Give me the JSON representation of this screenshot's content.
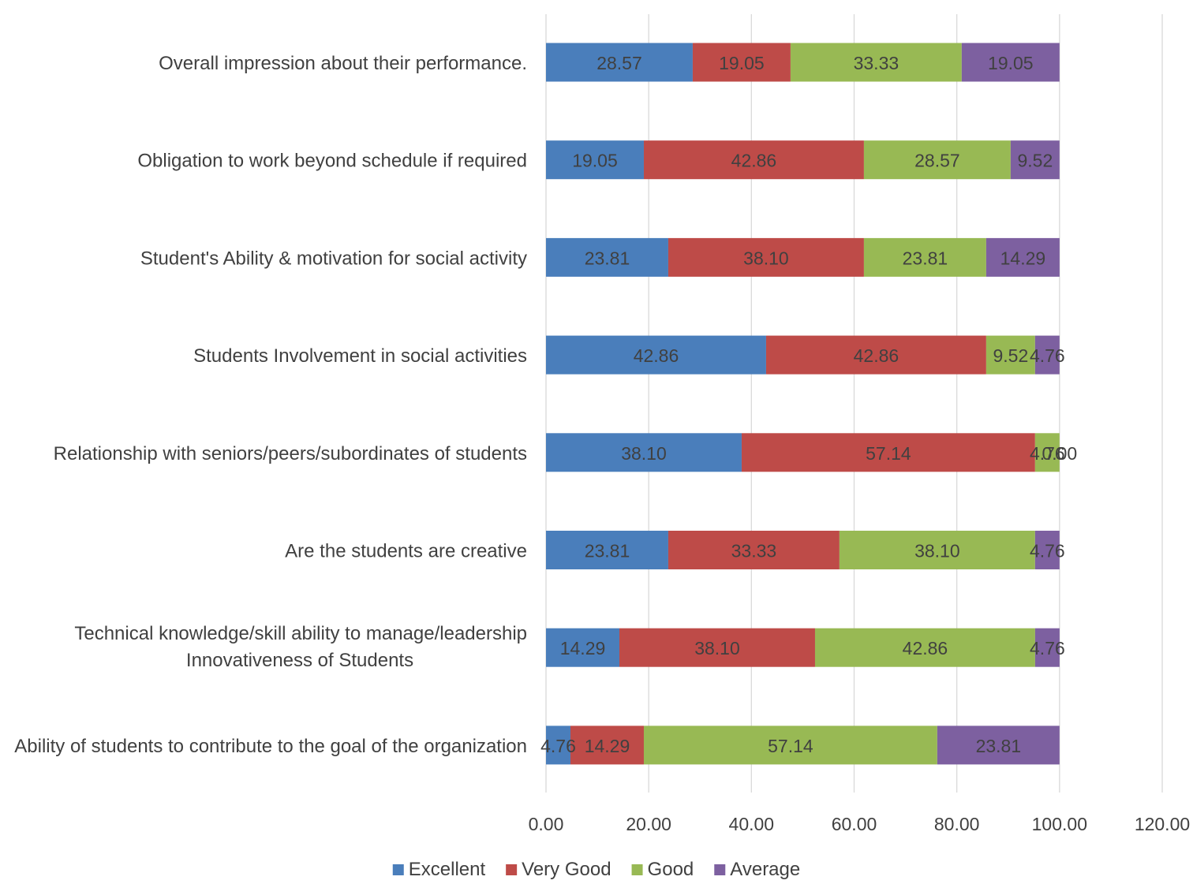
{
  "chart_data": {
    "type": "bar",
    "orientation": "horizontal",
    "stacked": true,
    "categories": [
      "Overall impression about their performance.",
      "Obligation to work beyond schedule if required",
      "Student's Ability & motivation for social activity",
      "Students Involvement in social activities",
      "Relationship with seniors/peers/subordinates of students",
      "Are the students are creative",
      "Technical knowledge/skill ability to manage/leadership Innovativeness of Students",
      "Ability of students to contribute to the goal of the organization"
    ],
    "category_lines": [
      [
        "Overall impression about their performance."
      ],
      [
        "Obligation to work beyond schedule if required"
      ],
      [
        "Student's Ability & motivation for social activity"
      ],
      [
        "Students Involvement in social activities"
      ],
      [
        "Relationship with seniors/peers/subordinates of students"
      ],
      [
        "Are the students are creative"
      ],
      [
        "Technical knowledge/skill ability to manage/leadership",
        "Innovativeness of Students"
      ],
      [
        "Ability of students to contribute to the goal of the organization"
      ]
    ],
    "series": [
      {
        "name": "Excellent",
        "color": "#4a7ebb",
        "values": [
          28.57,
          19.05,
          23.81,
          42.86,
          38.1,
          23.81,
          14.29,
          4.76
        ]
      },
      {
        "name": "Very Good",
        "color": "#be4b48",
        "values": [
          19.05,
          42.86,
          38.1,
          42.86,
          57.14,
          33.33,
          38.1,
          14.29
        ]
      },
      {
        "name": "Good",
        "color": "#98b954",
        "values": [
          33.33,
          28.57,
          23.81,
          9.52,
          4.76,
          38.1,
          42.86,
          57.14
        ]
      },
      {
        "name": "Average",
        "color": "#7d60a0",
        "values": [
          19.05,
          9.52,
          14.29,
          4.76,
          0.0,
          4.76,
          4.76,
          23.81
        ]
      }
    ],
    "xlim": [
      0,
      120
    ],
    "x_ticks": [
      "0.00",
      "20.00",
      "40.00",
      "60.00",
      "80.00",
      "100.00",
      "120.00"
    ],
    "xlabel": "",
    "ylabel": "",
    "title": "",
    "grid": true,
    "legend_position": "bottom",
    "gridline_color": "#d9d9d9"
  }
}
